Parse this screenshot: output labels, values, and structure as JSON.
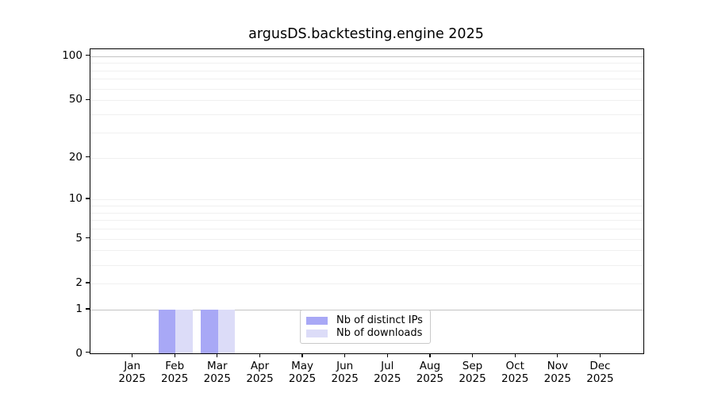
{
  "chart_data": {
    "type": "bar",
    "title": "argusDS.backtesting.engine 2025",
    "x": {
      "months": [
        "Jan",
        "Feb",
        "Mar",
        "Apr",
        "May",
        "Jun",
        "Jul",
        "Aug",
        "Sep",
        "Oct",
        "Nov",
        "Dec"
      ],
      "year": "2025"
    },
    "series": [
      {
        "name": "Nb of distinct IPs",
        "color": "#a8a8f6",
        "values": [
          0,
          1,
          1,
          0,
          0,
          0,
          0,
          0,
          0,
          0,
          0,
          0
        ]
      },
      {
        "name": "Nb of downloads",
        "color": "#dcdcf8",
        "values": [
          0,
          1,
          1,
          0,
          0,
          0,
          0,
          0,
          0,
          0,
          0,
          0
        ]
      }
    ],
    "y_axis": {
      "scale": "log1p",
      "tick_values": [
        0,
        1,
        2,
        5,
        10,
        20,
        50,
        100
      ],
      "minor_grid_values": [
        2,
        3,
        4,
        5,
        6,
        7,
        8,
        9,
        10,
        20,
        30,
        40,
        50,
        60,
        70,
        80,
        90
      ],
      "major_grid_values": [
        1,
        100
      ],
      "ylim": [
        0,
        112
      ]
    },
    "legend": {
      "position": "lower center"
    },
    "grid": "both"
  },
  "colors": {
    "background": "#ffffff",
    "spine": "#000000",
    "grid_minor": "#f0f0f0",
    "grid_major": "#c3c3c3",
    "text": "#000000",
    "legend_border": "#c9c9c9"
  }
}
